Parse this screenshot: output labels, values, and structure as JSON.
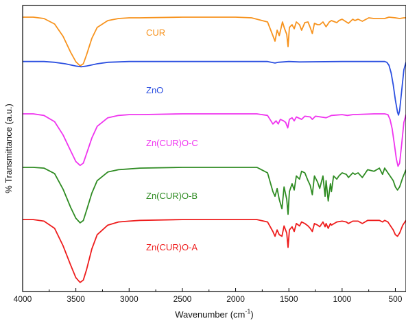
{
  "chart_data": {
    "type": "line",
    "xlabel": "Wavenumber (cm",
    "xlabel_sup": "-1",
    "xlabel_close": ")",
    "ylabel": "% Transmittance (a.u.)",
    "xlim": [
      4000,
      400
    ],
    "x_reversed": true,
    "xticks": [
      4000,
      3500,
      3000,
      2500,
      2000,
      1500,
      1000,
      500
    ],
    "xtick_labels": [
      "4000",
      "3500",
      "3000",
      "2500",
      "2000",
      "1500",
      "1000",
      "500"
    ],
    "yticks_shown": false,
    "grid": false,
    "legend": "none",
    "series": [
      {
        "name": "CUR",
        "color": "#f7931e",
        "points": [
          [
            4000,
            0.93
          ],
          [
            3900,
            0.93
          ],
          [
            3800,
            0.91
          ],
          [
            3700,
            0.83
          ],
          [
            3620,
            0.65
          ],
          [
            3550,
            0.42
          ],
          [
            3500,
            0.28
          ],
          [
            3460,
            0.22
          ],
          [
            3430,
            0.25
          ],
          [
            3400,
            0.38
          ],
          [
            3350,
            0.62
          ],
          [
            3300,
            0.78
          ],
          [
            3200,
            0.88
          ],
          [
            3100,
            0.91
          ],
          [
            3000,
            0.92
          ],
          [
            2900,
            0.92
          ],
          [
            2500,
            0.93
          ],
          [
            2000,
            0.93
          ],
          [
            1850,
            0.92
          ],
          [
            1800,
            0.9
          ],
          [
            1700,
            0.86
          ],
          [
            1650,
            0.66
          ],
          [
            1630,
            0.58
          ],
          [
            1610,
            0.74
          ],
          [
            1590,
            0.66
          ],
          [
            1560,
            0.86
          ],
          [
            1540,
            0.76
          ],
          [
            1520,
            0.68
          ],
          [
            1508,
            0.5
          ],
          [
            1495,
            0.78
          ],
          [
            1470,
            0.82
          ],
          [
            1450,
            0.76
          ],
          [
            1430,
            0.86
          ],
          [
            1400,
            0.82
          ],
          [
            1380,
            0.74
          ],
          [
            1350,
            0.85
          ],
          [
            1320,
            0.86
          ],
          [
            1300,
            0.78
          ],
          [
            1280,
            0.69
          ],
          [
            1260,
            0.84
          ],
          [
            1230,
            0.82
          ],
          [
            1210,
            0.82
          ],
          [
            1180,
            0.86
          ],
          [
            1150,
            0.79
          ],
          [
            1120,
            0.86
          ],
          [
            1100,
            0.88
          ],
          [
            1050,
            0.85
          ],
          [
            1030,
            0.88
          ],
          [
            1000,
            0.9
          ],
          [
            960,
            0.86
          ],
          [
            940,
            0.84
          ],
          [
            900,
            0.9
          ],
          [
            880,
            0.88
          ],
          [
            850,
            0.9
          ],
          [
            810,
            0.87
          ],
          [
            750,
            0.92
          ],
          [
            700,
            0.91
          ],
          [
            600,
            0.91
          ],
          [
            560,
            0.93
          ],
          [
            500,
            0.92
          ],
          [
            460,
            0.91
          ],
          [
            420,
            0.92
          ],
          [
            400,
            0.92
          ]
        ]
      },
      {
        "name": "ZnO",
        "color": "#2b4fe0",
        "points": [
          [
            4000,
            0.93
          ],
          [
            3800,
            0.93
          ],
          [
            3700,
            0.92
          ],
          [
            3600,
            0.9
          ],
          [
            3500,
            0.87
          ],
          [
            3450,
            0.86
          ],
          [
            3400,
            0.87
          ],
          [
            3300,
            0.9
          ],
          [
            3200,
            0.92
          ],
          [
            3000,
            0.93
          ],
          [
            2500,
            0.93
          ],
          [
            2000,
            0.93
          ],
          [
            1700,
            0.93
          ],
          [
            1630,
            0.91
          ],
          [
            1600,
            0.92
          ],
          [
            1500,
            0.93
          ],
          [
            1400,
            0.925
          ],
          [
            1000,
            0.93
          ],
          [
            700,
            0.93
          ],
          [
            600,
            0.93
          ],
          [
            580,
            0.92
          ],
          [
            560,
            0.88
          ],
          [
            540,
            0.78
          ],
          [
            520,
            0.62
          ],
          [
            500,
            0.42
          ],
          [
            480,
            0.26
          ],
          [
            470,
            0.22
          ],
          [
            460,
            0.28
          ],
          [
            440,
            0.55
          ],
          [
            420,
            0.82
          ],
          [
            400,
            0.92
          ]
        ]
      },
      {
        "name": "Zn(CUR)O-C",
        "color": "#ef33ef",
        "points": [
          [
            4000,
            0.93
          ],
          [
            3900,
            0.93
          ],
          [
            3800,
            0.91
          ],
          [
            3700,
            0.83
          ],
          [
            3620,
            0.66
          ],
          [
            3550,
            0.46
          ],
          [
            3500,
            0.32
          ],
          [
            3460,
            0.27
          ],
          [
            3430,
            0.3
          ],
          [
            3400,
            0.42
          ],
          [
            3350,
            0.62
          ],
          [
            3300,
            0.77
          ],
          [
            3200,
            0.88
          ],
          [
            3100,
            0.91
          ],
          [
            3000,
            0.92
          ],
          [
            2900,
            0.92
          ],
          [
            2500,
            0.93
          ],
          [
            2000,
            0.93
          ],
          [
            1800,
            0.93
          ],
          [
            1700,
            0.91
          ],
          [
            1650,
            0.8
          ],
          [
            1620,
            0.84
          ],
          [
            1600,
            0.8
          ],
          [
            1580,
            0.86
          ],
          [
            1550,
            0.84
          ],
          [
            1530,
            0.82
          ],
          [
            1510,
            0.75
          ],
          [
            1495,
            0.86
          ],
          [
            1470,
            0.88
          ],
          [
            1450,
            0.84
          ],
          [
            1430,
            0.89
          ],
          [
            1380,
            0.86
          ],
          [
            1350,
            0.9
          ],
          [
            1300,
            0.89
          ],
          [
            1280,
            0.86
          ],
          [
            1250,
            0.9
          ],
          [
            1150,
            0.88
          ],
          [
            1100,
            0.91
          ],
          [
            1000,
            0.92
          ],
          [
            950,
            0.91
          ],
          [
            900,
            0.92
          ],
          [
            700,
            0.93
          ],
          [
            600,
            0.93
          ],
          [
            570,
            0.92
          ],
          [
            550,
            0.86
          ],
          [
            530,
            0.74
          ],
          [
            510,
            0.55
          ],
          [
            490,
            0.35
          ],
          [
            475,
            0.26
          ],
          [
            460,
            0.3
          ],
          [
            440,
            0.55
          ],
          [
            420,
            0.82
          ],
          [
            400,
            0.92
          ]
        ]
      },
      {
        "name": "Zn(CUR)O-B",
        "color": "#2e8b22",
        "points": [
          [
            4000,
            0.93
          ],
          [
            3900,
            0.93
          ],
          [
            3800,
            0.92
          ],
          [
            3700,
            0.85
          ],
          [
            3620,
            0.65
          ],
          [
            3550,
            0.42
          ],
          [
            3500,
            0.28
          ],
          [
            3460,
            0.22
          ],
          [
            3430,
            0.25
          ],
          [
            3400,
            0.38
          ],
          [
            3350,
            0.6
          ],
          [
            3300,
            0.76
          ],
          [
            3200,
            0.87
          ],
          [
            3100,
            0.9
          ],
          [
            3000,
            0.91
          ],
          [
            2900,
            0.92
          ],
          [
            2500,
            0.93
          ],
          [
            2000,
            0.93
          ],
          [
            1800,
            0.93
          ],
          [
            1700,
            0.86
          ],
          [
            1650,
            0.62
          ],
          [
            1630,
            0.56
          ],
          [
            1610,
            0.66
          ],
          [
            1590,
            0.52
          ],
          [
            1565,
            0.4
          ],
          [
            1545,
            0.68
          ],
          [
            1520,
            0.52
          ],
          [
            1508,
            0.33
          ],
          [
            1495,
            0.62
          ],
          [
            1470,
            0.72
          ],
          [
            1450,
            0.64
          ],
          [
            1430,
            0.82
          ],
          [
            1400,
            0.78
          ],
          [
            1380,
            0.88
          ],
          [
            1350,
            0.86
          ],
          [
            1320,
            0.76
          ],
          [
            1300,
            0.7
          ],
          [
            1280,
            0.58
          ],
          [
            1260,
            0.82
          ],
          [
            1230,
            0.74
          ],
          [
            1210,
            0.66
          ],
          [
            1180,
            0.82
          ],
          [
            1160,
            0.56
          ],
          [
            1150,
            0.76
          ],
          [
            1130,
            0.5
          ],
          [
            1110,
            0.72
          ],
          [
            1100,
            0.62
          ],
          [
            1080,
            0.82
          ],
          [
            1050,
            0.78
          ],
          [
            1030,
            0.82
          ],
          [
            1000,
            0.86
          ],
          [
            960,
            0.84
          ],
          [
            940,
            0.8
          ],
          [
            900,
            0.86
          ],
          [
            880,
            0.84
          ],
          [
            850,
            0.86
          ],
          [
            810,
            0.8
          ],
          [
            760,
            0.9
          ],
          [
            700,
            0.88
          ],
          [
            650,
            0.92
          ],
          [
            620,
            0.84
          ],
          [
            600,
            0.92
          ],
          [
            570,
            0.86
          ],
          [
            550,
            0.82
          ],
          [
            520,
            0.76
          ],
          [
            500,
            0.68
          ],
          [
            480,
            0.64
          ],
          [
            460,
            0.68
          ],
          [
            430,
            0.8
          ],
          [
            400,
            0.9
          ]
        ]
      },
      {
        "name": "Zn(CUR)O-A",
        "color": "#ee1c1c",
        "points": [
          [
            4000,
            0.93
          ],
          [
            3900,
            0.93
          ],
          [
            3800,
            0.91
          ],
          [
            3700,
            0.82
          ],
          [
            3620,
            0.6
          ],
          [
            3550,
            0.36
          ],
          [
            3500,
            0.2
          ],
          [
            3460,
            0.14
          ],
          [
            3430,
            0.17
          ],
          [
            3400,
            0.3
          ],
          [
            3350,
            0.56
          ],
          [
            3300,
            0.74
          ],
          [
            3200,
            0.86
          ],
          [
            3100,
            0.9
          ],
          [
            3000,
            0.91
          ],
          [
            2900,
            0.92
          ],
          [
            2500,
            0.93
          ],
          [
            2000,
            0.93
          ],
          [
            1800,
            0.93
          ],
          [
            1700,
            0.9
          ],
          [
            1650,
            0.78
          ],
          [
            1630,
            0.72
          ],
          [
            1610,
            0.8
          ],
          [
            1590,
            0.74
          ],
          [
            1565,
            0.72
          ],
          [
            1545,
            0.85
          ],
          [
            1520,
            0.76
          ],
          [
            1508,
            0.58
          ],
          [
            1495,
            0.8
          ],
          [
            1470,
            0.84
          ],
          [
            1450,
            0.78
          ],
          [
            1430,
            0.88
          ],
          [
            1400,
            0.85
          ],
          [
            1380,
            0.9
          ],
          [
            1350,
            0.88
          ],
          [
            1320,
            0.85
          ],
          [
            1300,
            0.82
          ],
          [
            1280,
            0.78
          ],
          [
            1260,
            0.88
          ],
          [
            1230,
            0.86
          ],
          [
            1210,
            0.84
          ],
          [
            1180,
            0.9
          ],
          [
            1160,
            0.84
          ],
          [
            1150,
            0.88
          ],
          [
            1130,
            0.82
          ],
          [
            1110,
            0.88
          ],
          [
            1100,
            0.86
          ],
          [
            1050,
            0.9
          ],
          [
            1000,
            0.91
          ],
          [
            960,
            0.9
          ],
          [
            940,
            0.88
          ],
          [
            900,
            0.91
          ],
          [
            850,
            0.91
          ],
          [
            810,
            0.88
          ],
          [
            760,
            0.92
          ],
          [
            650,
            0.92
          ],
          [
            620,
            0.9
          ],
          [
            600,
            0.92
          ],
          [
            570,
            0.9
          ],
          [
            550,
            0.86
          ],
          [
            520,
            0.8
          ],
          [
            500,
            0.74
          ],
          [
            480,
            0.72
          ],
          [
            460,
            0.76
          ],
          [
            430,
            0.86
          ],
          [
            400,
            0.92
          ]
        ]
      }
    ]
  }
}
